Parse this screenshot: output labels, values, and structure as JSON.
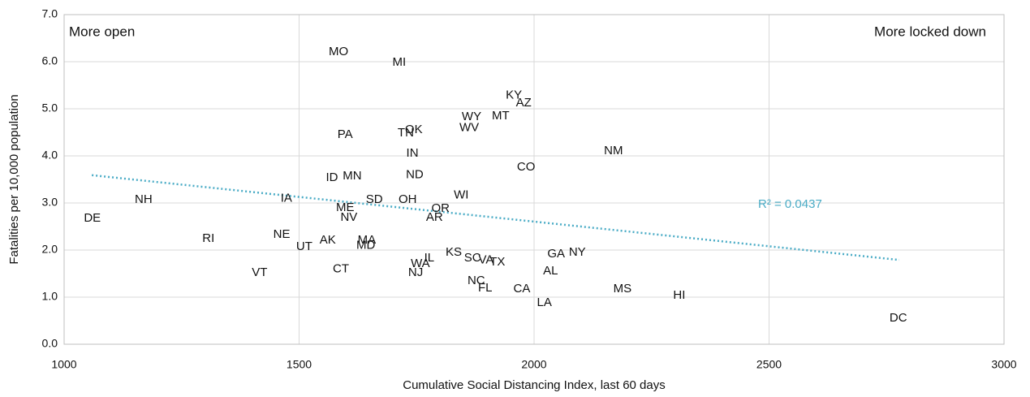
{
  "chart_data": {
    "type": "scatter",
    "x_label": "Cumulative Social Distancing Index, last 60 days",
    "y_label": "Fatalities per 10,000 population",
    "annotations": [
      "More open",
      "More locked down"
    ],
    "labels": [
      "MO",
      "MI",
      "KY",
      "AZ",
      "MT",
      "WY",
      "WV",
      "OK",
      "TN",
      "PA",
      "IN",
      "NM",
      "CO",
      "ND",
      "MN",
      "ID",
      "WI",
      "IA",
      "SD",
      "OH",
      "NH",
      "OR",
      "ME",
      "NV",
      "AR",
      "DE",
      "NE",
      "RI",
      "AK",
      "MA",
      "MD",
      "UT",
      "KS",
      "NY",
      "GA",
      "SC",
      "VA",
      "TX",
      "IL",
      "WA",
      "CT",
      "AL",
      "NJ",
      "VT",
      "NC",
      "FL",
      "CA",
      "MS",
      "HI",
      "LA",
      "DC"
    ],
    "x": [
      1584,
      1713,
      1957,
      1978,
      1929,
      1867,
      1862,
      1744,
      1727,
      1598,
      1741,
      2169,
      1983,
      1746,
      1613,
      1570,
      1845,
      1473,
      1660,
      1731,
      1169,
      1801,
      1598,
      1606,
      1788,
      1060,
      1463,
      1307,
      1561,
      1644,
      1642,
      1511,
      1829,
      2092,
      2047,
      1869,
      1898,
      1922,
      1777,
      1758,
      1589,
      2035,
      1748,
      1416,
      1877,
      1896,
      1974,
      2188,
      2309,
      2022,
      2775
    ],
    "y": [
      6.21,
      5.98,
      5.28,
      5.12,
      4.84,
      4.83,
      4.59,
      4.55,
      4.48,
      4.45,
      4.05,
      4.1,
      3.76,
      3.59,
      3.57,
      3.53,
      3.16,
      3.09,
      3.07,
      3.07,
      3.07,
      2.88,
      2.9,
      2.69,
      2.69,
      2.67,
      2.33,
      2.24,
      2.21,
      2.21,
      2.09,
      2.07,
      1.95,
      1.95,
      1.91,
      1.83,
      1.78,
      1.74,
      1.83,
      1.71,
      1.59,
      1.55,
      1.52,
      1.52,
      1.34,
      1.19,
      1.17,
      1.17,
      1.03,
      0.88,
      0.55
    ],
    "trendline": {
      "label": "R² = 0.0437",
      "color": "#4bacc6",
      "x": [
        1059,
        2777
      ],
      "y": [
        3.59,
        1.79
      ]
    },
    "xlim": [
      1000,
      3000
    ],
    "xticks": [
      1000,
      1500,
      2000,
      2500,
      3000
    ],
    "ylim": [
      0,
      7
    ],
    "yticks": [
      {
        "value": 0,
        "label": "0.0"
      },
      {
        "value": 1,
        "label": "1.0"
      },
      {
        "value": 2,
        "label": "2.0"
      },
      {
        "value": 3,
        "label": "3.0"
      },
      {
        "value": 4,
        "label": "4.0"
      },
      {
        "value": 5,
        "label": "5.0"
      },
      {
        "value": 6,
        "label": "6.0"
      },
      {
        "value": 7,
        "label": "7.0"
      }
    ],
    "grid": true
  }
}
